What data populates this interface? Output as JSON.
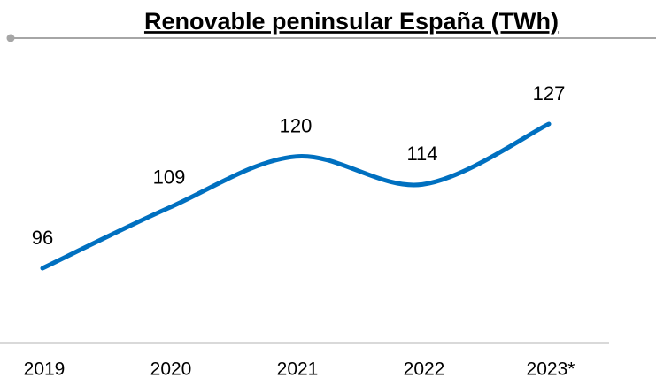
{
  "chart_data": {
    "type": "line",
    "title": "Renovable peninsular España (TWh)",
    "categories": [
      "2019",
      "2020",
      "2021",
      "2022",
      "2023*"
    ],
    "values": [
      96,
      109,
      120,
      114,
      127
    ],
    "color": "#0070c0",
    "smooth": true
  }
}
